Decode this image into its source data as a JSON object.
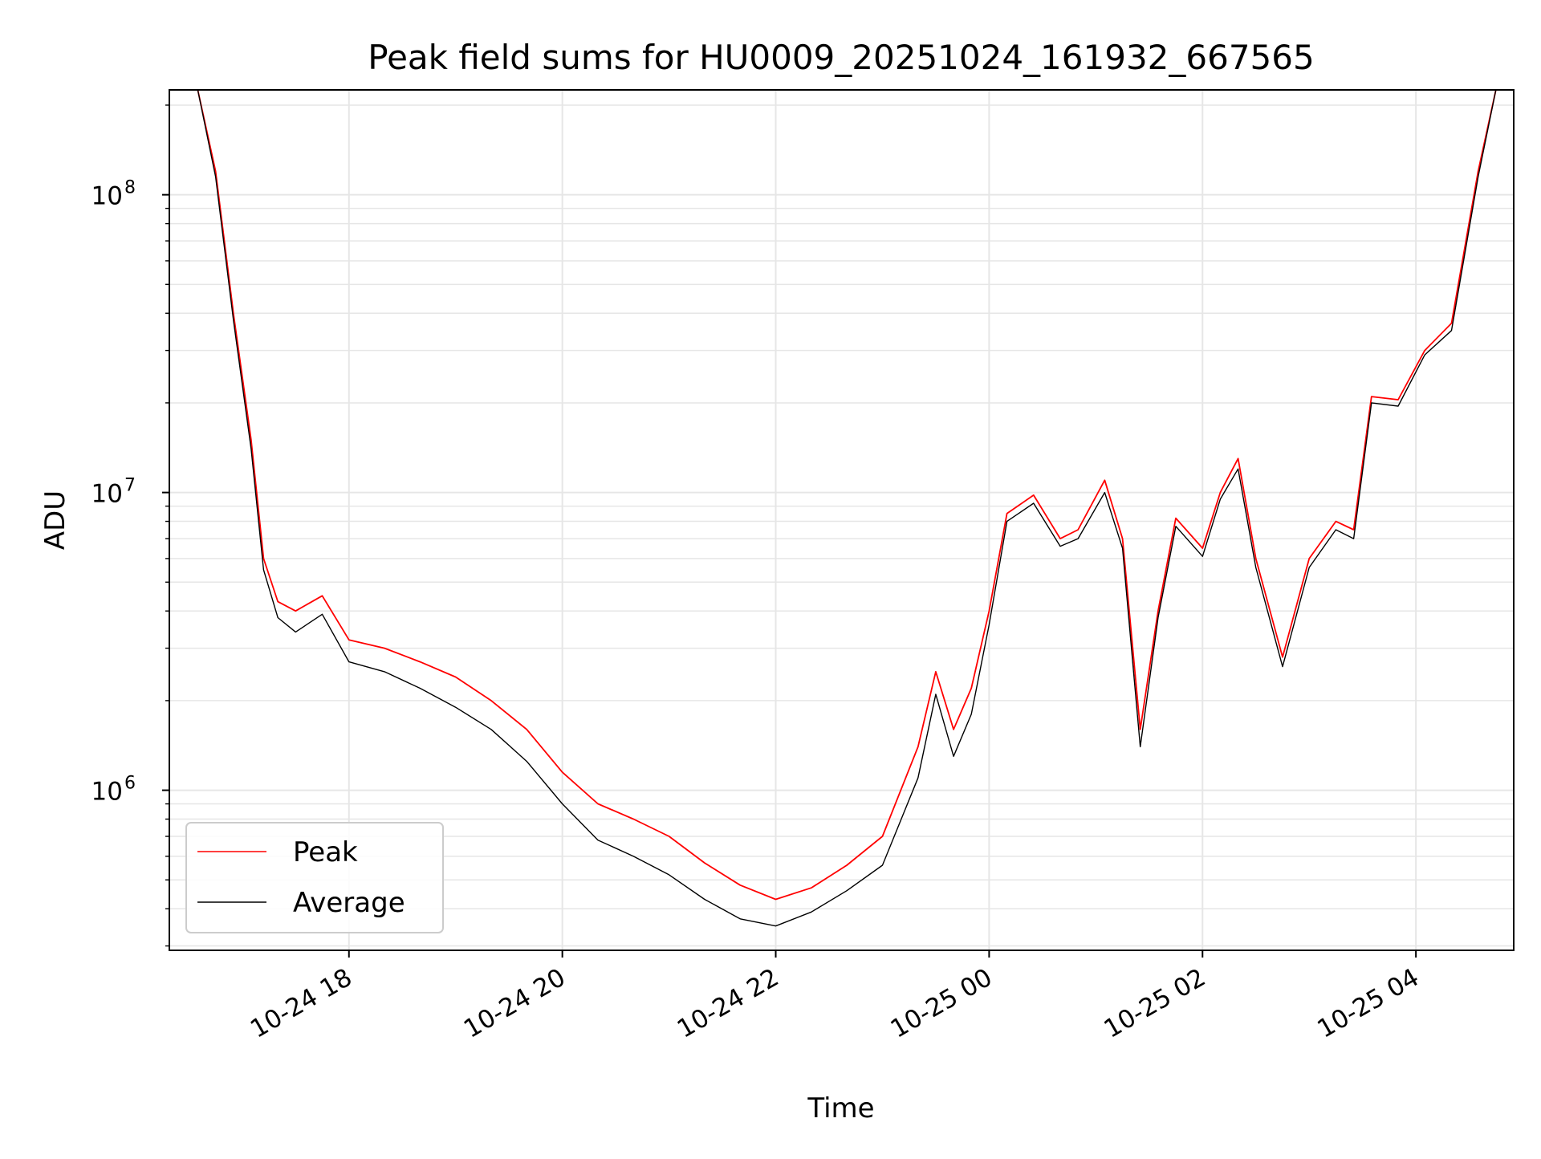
{
  "chart_data": {
    "type": "line",
    "title": "Peak field sums for HU0009_20251024_161932_667565",
    "xlabel": "Time",
    "ylabel": "ADU",
    "x_scale": "time",
    "y_scale": "log",
    "xlim": [
      "2025-10-24 16:19",
      "2025-10-25 04:55"
    ],
    "ylim": [
      290000,
      225000000
    ],
    "grid": true,
    "legend_position": "lower-left",
    "x_ticks": [
      {
        "t": "2025-10-24 18:00",
        "label": "10-24 18"
      },
      {
        "t": "2025-10-24 20:00",
        "label": "10-24 20"
      },
      {
        "t": "2025-10-24 22:00",
        "label": "10-24 22"
      },
      {
        "t": "2025-10-25 00:00",
        "label": "10-25 00"
      },
      {
        "t": "2025-10-25 02:00",
        "label": "10-25 02"
      },
      {
        "t": "2025-10-25 04:00",
        "label": "10-25 04"
      }
    ],
    "y_ticks": [
      {
        "value": 1000000,
        "base": "10",
        "exp": "6"
      },
      {
        "value": 10000000,
        "base": "10",
        "exp": "7"
      },
      {
        "value": 100000000,
        "base": "10",
        "exp": "8"
      }
    ],
    "series": [
      {
        "name": "Peak",
        "color": "#ff0000",
        "x": [
          "2025-10-24 16:35",
          "2025-10-24 16:45",
          "2025-10-24 16:55",
          "2025-10-24 17:05",
          "2025-10-24 17:12",
          "2025-10-24 17:20",
          "2025-10-24 17:30",
          "2025-10-24 17:45",
          "2025-10-24 18:00",
          "2025-10-24 18:20",
          "2025-10-24 18:40",
          "2025-10-24 19:00",
          "2025-10-24 19:20",
          "2025-10-24 19:40",
          "2025-10-24 20:00",
          "2025-10-24 20:20",
          "2025-10-24 20:40",
          "2025-10-24 21:00",
          "2025-10-24 21:20",
          "2025-10-24 21:40",
          "2025-10-24 22:00",
          "2025-10-24 22:20",
          "2025-10-24 22:40",
          "2025-10-24 23:00",
          "2025-10-24 23:20",
          "2025-10-24 23:30",
          "2025-10-24 23:40",
          "2025-10-24 23:50",
          "2025-10-25 00:00",
          "2025-10-25 00:10",
          "2025-10-25 00:25",
          "2025-10-25 00:40",
          "2025-10-25 00:50",
          "2025-10-25 01:05",
          "2025-10-25 01:15",
          "2025-10-25 01:25",
          "2025-10-25 01:35",
          "2025-10-25 01:45",
          "2025-10-25 02:00",
          "2025-10-25 02:10",
          "2025-10-25 02:20",
          "2025-10-25 02:30",
          "2025-10-25 02:45",
          "2025-10-25 03:00",
          "2025-10-25 03:15",
          "2025-10-25 03:25",
          "2025-10-25 03:35",
          "2025-10-25 03:50",
          "2025-10-25 04:05",
          "2025-10-25 04:20",
          "2025-10-25 04:35",
          "2025-10-25 04:45"
        ],
        "y": [
          230000000,
          120000000,
          40000000,
          15000000,
          6000000,
          4300000,
          4000000,
          4500000,
          3200000,
          3000000,
          2700000,
          2400000,
          2000000,
          1600000,
          1150000,
          900000,
          800000,
          700000,
          570000,
          480000,
          430000,
          470000,
          560000,
          700000,
          1400000,
          2500000,
          1600000,
          2200000,
          4000000,
          8500000,
          9800000,
          7000000,
          7500000,
          11000000,
          7000000,
          1600000,
          4000000,
          8200000,
          6500000,
          10000000,
          13000000,
          6000000,
          2800000,
          6000000,
          8000000,
          7500000,
          21000000,
          20500000,
          30000000,
          37000000,
          120000000,
          240000000
        ]
      },
      {
        "name": "Average",
        "color": "#000000",
        "x": [
          "2025-10-24 16:35",
          "2025-10-24 16:45",
          "2025-10-24 16:55",
          "2025-10-24 17:05",
          "2025-10-24 17:12",
          "2025-10-24 17:20",
          "2025-10-24 17:30",
          "2025-10-24 17:45",
          "2025-10-24 18:00",
          "2025-10-24 18:20",
          "2025-10-24 18:40",
          "2025-10-24 19:00",
          "2025-10-24 19:20",
          "2025-10-24 19:40",
          "2025-10-24 20:00",
          "2025-10-24 20:20",
          "2025-10-24 20:40",
          "2025-10-24 21:00",
          "2025-10-24 21:20",
          "2025-10-24 21:40",
          "2025-10-24 22:00",
          "2025-10-24 22:20",
          "2025-10-24 22:40",
          "2025-10-24 23:00",
          "2025-10-24 23:20",
          "2025-10-24 23:30",
          "2025-10-24 23:40",
          "2025-10-24 23:50",
          "2025-10-25 00:00",
          "2025-10-25 00:10",
          "2025-10-25 00:25",
          "2025-10-25 00:40",
          "2025-10-25 00:50",
          "2025-10-25 01:05",
          "2025-10-25 01:15",
          "2025-10-25 01:25",
          "2025-10-25 01:35",
          "2025-10-25 01:45",
          "2025-10-25 02:00",
          "2025-10-25 02:10",
          "2025-10-25 02:20",
          "2025-10-25 02:30",
          "2025-10-25 02:45",
          "2025-10-25 03:00",
          "2025-10-25 03:15",
          "2025-10-25 03:25",
          "2025-10-25 03:35",
          "2025-10-25 03:50",
          "2025-10-25 04:05",
          "2025-10-25 04:20",
          "2025-10-25 04:35",
          "2025-10-25 04:45"
        ],
        "y": [
          225000000,
          115000000,
          38000000,
          14000000,
          5500000,
          3800000,
          3400000,
          3900000,
          2700000,
          2500000,
          2200000,
          1900000,
          1600000,
          1250000,
          900000,
          680000,
          600000,
          520000,
          430000,
          370000,
          350000,
          390000,
          460000,
          560000,
          1100000,
          2100000,
          1300000,
          1800000,
          3600000,
          8000000,
          9200000,
          6600000,
          7000000,
          10000000,
          6500000,
          1400000,
          3800000,
          7700000,
          6100000,
          9500000,
          12000000,
          5600000,
          2600000,
          5600000,
          7500000,
          7000000,
          20000000,
          19500000,
          29000000,
          35000000,
          115000000,
          230000000
        ]
      }
    ]
  }
}
